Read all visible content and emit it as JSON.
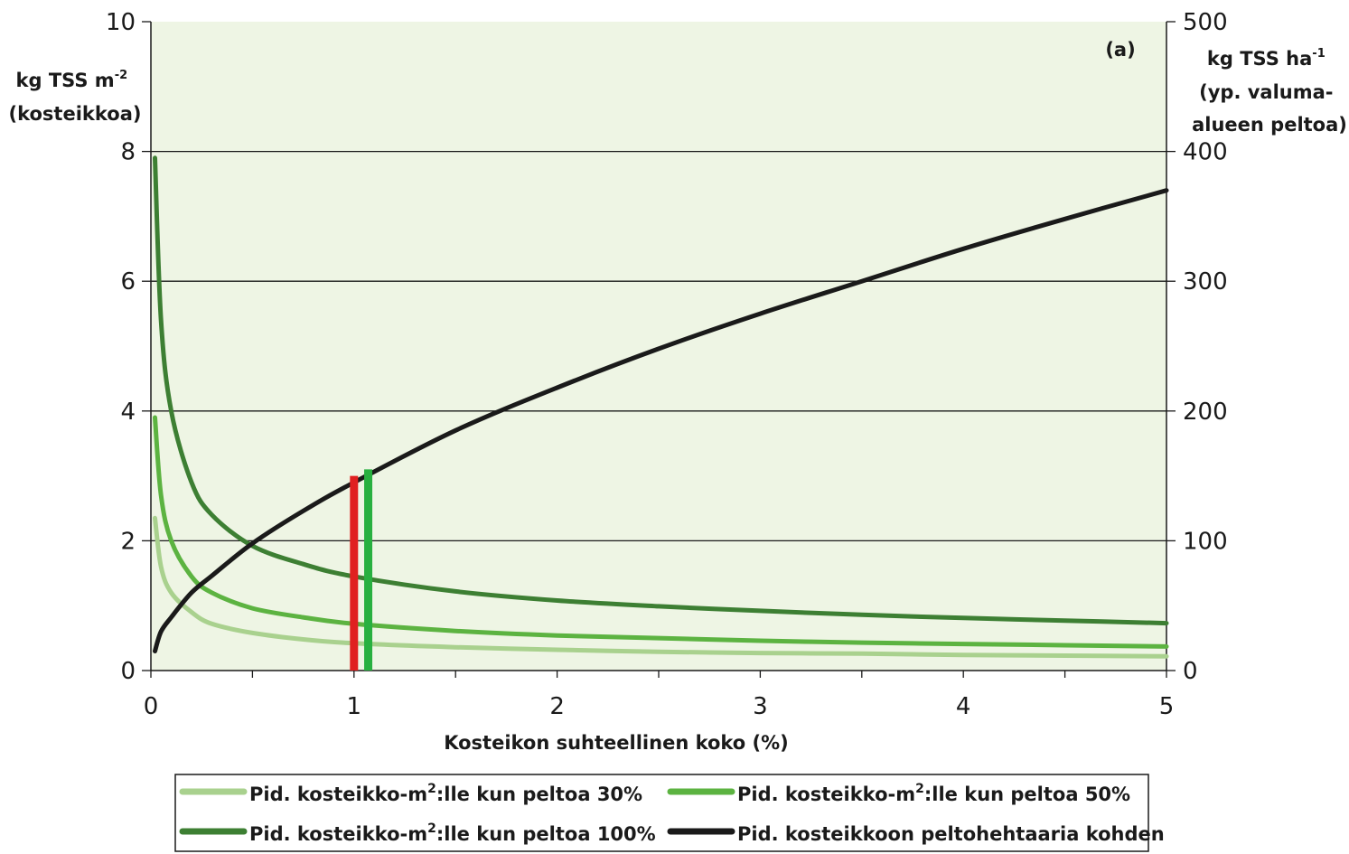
{
  "chart_data": {
    "type": "line",
    "panel_label": "(a)",
    "xlabel": "Kosteikon suhteellinen koko (%)",
    "ylabel_left": [
      "kg TSS m-2",
      "(kosteikkoa)"
    ],
    "ylabel_right": [
      "kg TSS ha-1",
      "(yp. valuma-",
      "alueen peltoa)"
    ],
    "xlim": [
      0,
      5
    ],
    "ylim_left": [
      0,
      10
    ],
    "ylim_right": [
      0,
      500
    ],
    "x_ticks": [
      "0",
      "1",
      "2",
      "3",
      "4",
      "5"
    ],
    "y_left_ticks": [
      "0",
      "2",
      "4",
      "6",
      "8",
      "10"
    ],
    "y_right_ticks": [
      "0",
      "100",
      "200",
      "300",
      "400",
      "500"
    ],
    "grid": "horizontal",
    "legend_position": "bottom",
    "x": [
      0.02,
      0.05,
      0.1,
      0.2,
      0.3,
      0.5,
      0.75,
      1.0,
      1.5,
      2.0,
      2.5,
      3.0,
      3.5,
      4.0,
      4.5,
      5.0
    ],
    "series": [
      {
        "name": "Pid. kosteikko-m2:lle kun peltoa 30%",
        "axis": "left",
        "color": "#a9d18e",
        "values": [
          2.35,
          1.6,
          1.2,
          0.9,
          0.72,
          0.58,
          0.48,
          0.42,
          0.36,
          0.32,
          0.29,
          0.27,
          0.26,
          0.24,
          0.23,
          0.22
        ]
      },
      {
        "name": "Pid. kosteikko-m2:lle kun peltoa 50%",
        "axis": "left",
        "color": "#5cb341",
        "values": [
          3.9,
          2.7,
          2.0,
          1.45,
          1.2,
          0.96,
          0.82,
          0.72,
          0.61,
          0.54,
          0.5,
          0.46,
          0.43,
          0.41,
          0.39,
          0.37
        ]
      },
      {
        "name": "Pid. kosteikko-m2:lle kun peltoa 100%",
        "axis": "left",
        "color": "#3d7f33",
        "values": [
          7.9,
          5.4,
          4.0,
          2.9,
          2.4,
          1.92,
          1.64,
          1.45,
          1.22,
          1.08,
          0.99,
          0.92,
          0.86,
          0.81,
          0.77,
          0.73
        ]
      },
      {
        "name": "Pid. kosteikkoon peltohehtaaria kohden",
        "axis": "right",
        "color": "#1a1a1a",
        "values": [
          15,
          30,
          41,
          60,
          73,
          98,
          123,
          145,
          185,
          218,
          248,
          275,
          300,
          325,
          348,
          370
        ]
      }
    ],
    "markers": [
      {
        "x": 1.0,
        "y_left": 3.0,
        "color": "#e02020"
      },
      {
        "x": 1.07,
        "y_left": 3.1,
        "color": "#28b040"
      }
    ]
  },
  "legend": [
    {
      "pre": "Pid. kosteikko-m",
      "sup": "2",
      "post": ":lle kun peltoa 30%",
      "color": "#a9d18e"
    },
    {
      "pre": "Pid. kosteikko-m",
      "sup": "2",
      "post": ":lle kun peltoa 50%",
      "color": "#5cb341"
    },
    {
      "pre": "Pid. kosteikko-m",
      "sup": "2",
      "post": ":lle kun peltoa 100%",
      "color": "#3d7f33"
    },
    {
      "pre": "Pid. kosteikkoon peltohehtaaria kohden",
      "sup": "",
      "post": "",
      "color": "#1a1a1a"
    }
  ],
  "colors": {
    "plot_background": "#eef5e4",
    "gridline": "#1a1a1a"
  }
}
